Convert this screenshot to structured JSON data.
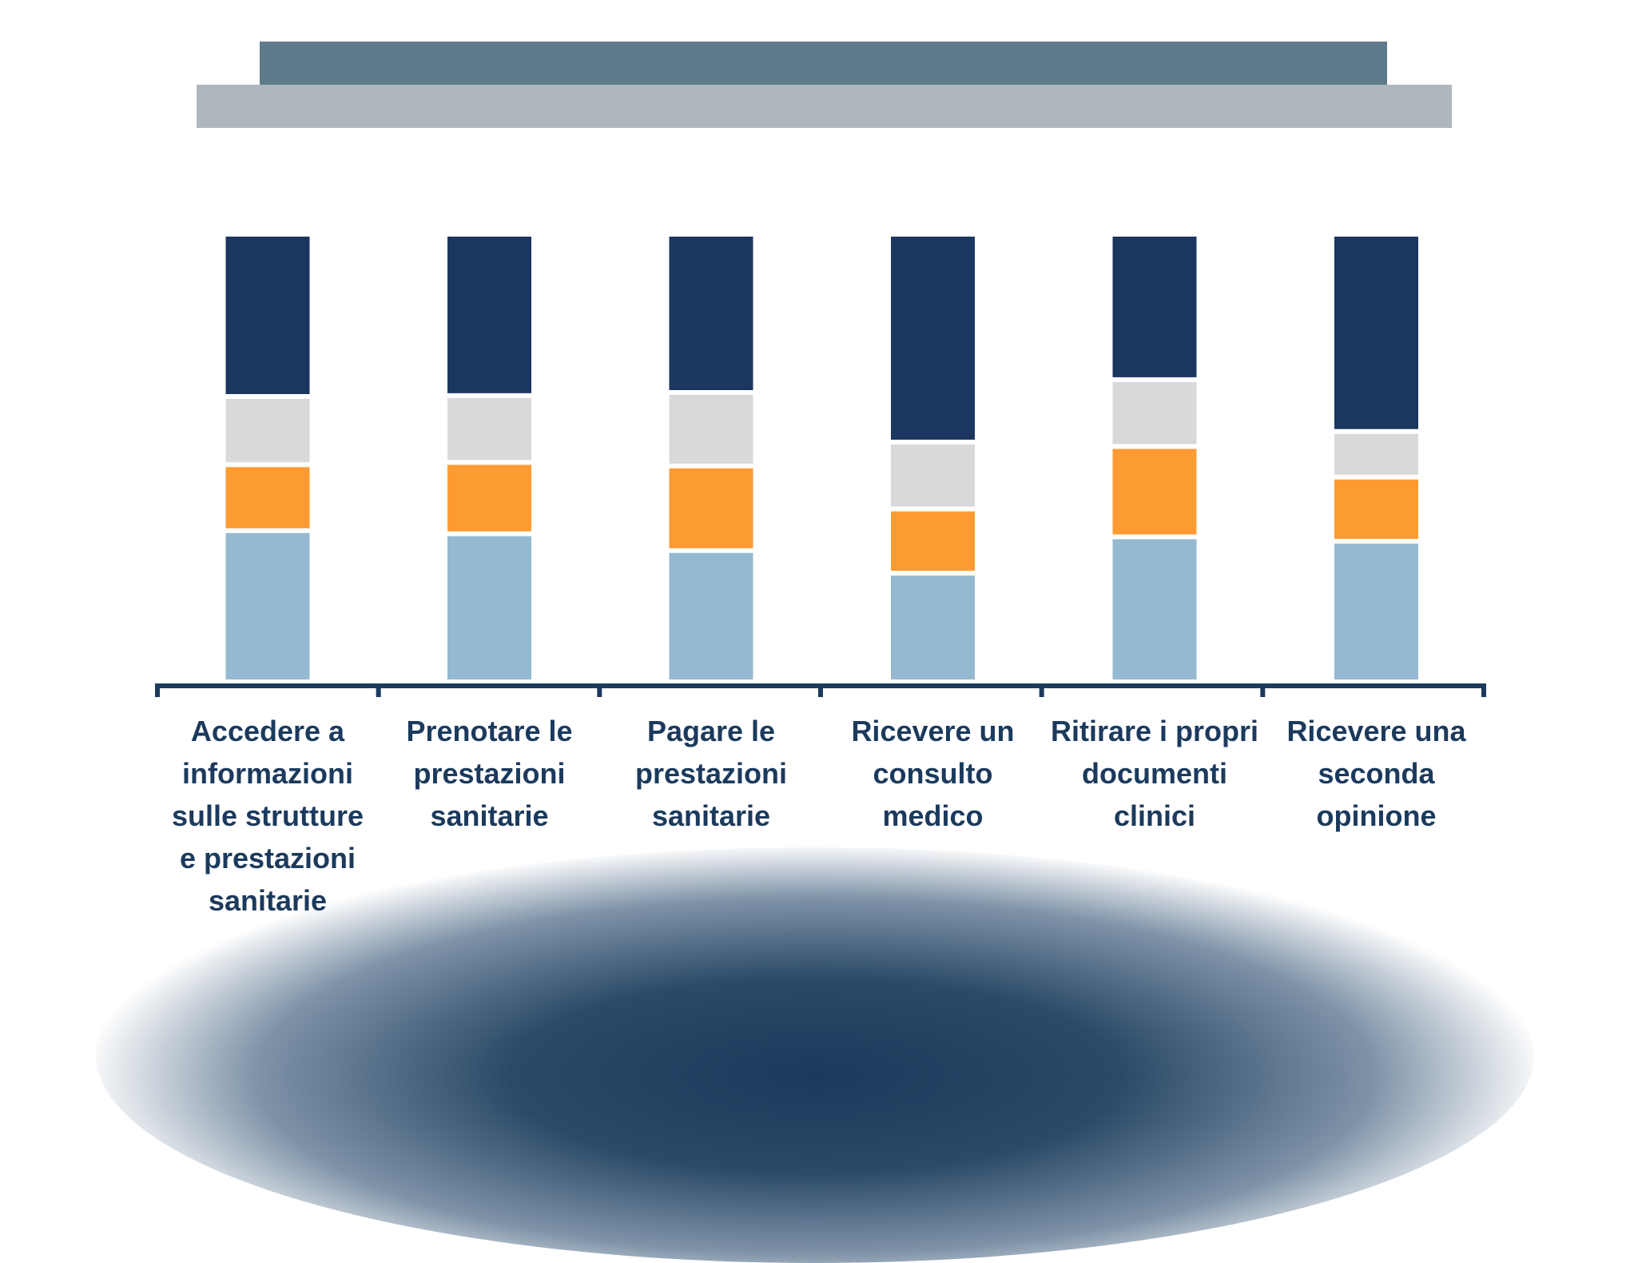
{
  "chart_data": {
    "type": "bar",
    "stacked": true,
    "categories": [
      "Accedere a informazioni sulle strutture e prestazioni sanitarie",
      "Prenotare le prestazioni sanitarie",
      "Pagare le prestazioni sanitarie",
      "Ricevere un consulto medico",
      "Ritirare i propri documenti clinici",
      "Ricevere una seconda opinione"
    ],
    "series": [
      {
        "color": "#94b9d1",
        "values": [
          33.6,
          32.9,
          29.1,
          24.0,
          32.2,
          31.2
        ]
      },
      {
        "color": "#fd9b33",
        "values": [
          14.9,
          16.1,
          19.1,
          14.5,
          20.4,
          14.5
        ]
      },
      {
        "color": "#d9d9d9",
        "values": [
          15.4,
          15.1,
          16.6,
          15.1,
          15.1,
          10.3
        ]
      },
      {
        "color": "#1b3760",
        "values": [
          36.1,
          35.9,
          35.2,
          46.4,
          32.3,
          44.0
        ]
      }
    ],
    "ylim": [
      0,
      100
    ],
    "title": "",
    "xlabel": "",
    "ylabel": "",
    "grid": false,
    "legend": "none"
  },
  "axis_color": "#1b3a5d",
  "label_color": "#1b3a5d"
}
